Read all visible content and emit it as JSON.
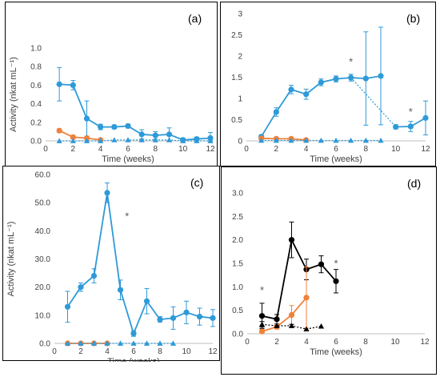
{
  "chart_data": [
    {
      "type": "line",
      "panel_label": "(a)",
      "xlabel": "Time (weeks)",
      "ylabel": "Activity (nkat mL⁻¹)",
      "xlim": [
        0,
        12
      ],
      "ylim": [
        0,
        1.0
      ],
      "xticks": [
        "0",
        "2",
        "4",
        "6",
        "8",
        "10",
        "12"
      ],
      "yticks": [
        "0.0",
        "0.2",
        "0.4",
        "0.6",
        "0.8",
        "1.0"
      ],
      "grid": false,
      "series": [
        {
          "color": "#2e9ad8",
          "style": "solid",
          "marker": "circle",
          "x": [
            1,
            2,
            3,
            4,
            5,
            6,
            7,
            8,
            9,
            10,
            11,
            12
          ],
          "values": [
            0.61,
            0.6,
            0.24,
            0.15,
            0.15,
            0.16,
            0.07,
            0.06,
            0.07,
            0.01,
            0.02,
            0.03
          ],
          "err": [
            0.18,
            0.05,
            0.19,
            0.03,
            0.02,
            0.02,
            0.05,
            0.04,
            0.07,
            0.02,
            0.02,
            0.06
          ]
        },
        {
          "color": "#f0813a",
          "style": "solid",
          "marker": "circle",
          "x": [
            1,
            2,
            3,
            4
          ],
          "values": [
            0.11,
            0.04,
            0.03,
            0.01
          ],
          "err": [
            0.02,
            0.02,
            0.01,
            0.0
          ]
        },
        {
          "color": "#2e9ad8",
          "style": "dotted",
          "marker": "triangle",
          "x": [
            1,
            2,
            3,
            4,
            5,
            6,
            7,
            8,
            9,
            10,
            11,
            12
          ],
          "values": [
            0.0,
            0.0,
            0.0,
            0.0,
            0.01,
            0.01,
            0.01,
            0.01,
            0.01,
            0.0,
            0.0,
            0.0
          ],
          "err": []
        }
      ],
      "annotations": []
    },
    {
      "type": "line",
      "panel_label": "(b)",
      "xlabel": "Time (weeks)",
      "ylabel": "",
      "xlim": [
        0,
        12
      ],
      "ylim": [
        0,
        3.0
      ],
      "xticks": [
        "0",
        "2",
        "4",
        "6",
        "8",
        "10",
        "12"
      ],
      "yticks": [
        "0",
        "0.5",
        "1",
        "1.5",
        "2",
        "2.5",
        "3"
      ],
      "grid": false,
      "series": [
        {
          "color": "#2e9ad8",
          "style": "solid",
          "marker": "circle",
          "x": [
            1,
            2,
            3,
            4,
            5,
            6,
            7,
            8,
            9
          ],
          "values": [
            0.1,
            0.68,
            1.21,
            1.1,
            1.38,
            1.46,
            1.49,
            1.47,
            1.53
          ],
          "err": [
            0.03,
            0.1,
            0.1,
            0.12,
            0.08,
            0.07,
            0.08,
            1.1,
            1.15
          ]
        },
        {
          "color": "#2e9ad8",
          "style": "dotted",
          "marker": "none",
          "x": [
            7,
            10
          ],
          "values": [
            1.49,
            0.33
          ],
          "err": []
        },
        {
          "color": "#2e9ad8",
          "style": "solid",
          "marker": "circle",
          "x": [
            10,
            11,
            12
          ],
          "values": [
            0.33,
            0.34,
            0.54
          ],
          "err": [
            0.05,
            0.12,
            0.4
          ]
        },
        {
          "color": "#f0813a",
          "style": "solid",
          "marker": "circle",
          "x": [
            1,
            2,
            3,
            4
          ],
          "values": [
            0.06,
            0.05,
            0.05,
            0.02
          ],
          "err": [
            0.02,
            0.02,
            0.02,
            0.01
          ]
        },
        {
          "color": "#2e9ad8",
          "style": "dotted",
          "marker": "triangle",
          "x": [
            1,
            2,
            3,
            4,
            5,
            6,
            7,
            8,
            9
          ],
          "values": [
            0.01,
            0.01,
            0.01,
            0.01,
            0.01,
            0.01,
            0.01,
            0.01,
            0.01
          ],
          "err": []
        }
      ],
      "annotations": [
        {
          "text": "*",
          "x": 7,
          "y": 1.78
        },
        {
          "text": "*",
          "x": 11,
          "y": 0.6
        }
      ]
    },
    {
      "type": "line",
      "panel_label": "(c)",
      "xlabel": "Time (weeks)",
      "ylabel": "Activity (nkat mL⁻¹)",
      "xlim": [
        0,
        12
      ],
      "ylim": [
        0,
        60
      ],
      "xticks": [
        "0",
        "2",
        "4",
        "6",
        "8",
        "10",
        "12"
      ],
      "yticks": [
        "0.0",
        "10.0",
        "20.0",
        "30.0",
        "40.0",
        "50.0",
        "60.0"
      ],
      "grid": false,
      "series": [
        {
          "color": "#2e9ad8",
          "style": "solid",
          "marker": "circle",
          "x": [
            1,
            2,
            3,
            4,
            5,
            6,
            7,
            8,
            9,
            10,
            11,
            12
          ],
          "values": [
            13,
            20,
            24,
            53.5,
            19,
            3.5,
            15,
            8.5,
            9,
            11,
            9.5,
            9
          ],
          "err": [
            5.5,
            1.5,
            2.5,
            3.5,
            3.5,
            1,
            4.5,
            1,
            4,
            4,
            3,
            3
          ]
        },
        {
          "color": "#f0813a",
          "style": "solid",
          "marker": "circle",
          "x": [
            1,
            2,
            3,
            4
          ],
          "values": [
            0,
            0,
            0,
            0
          ],
          "err": []
        },
        {
          "color": "#2e9ad8",
          "style": "dotted",
          "marker": "triangle",
          "x": [
            1,
            2,
            3,
            4,
            5,
            6,
            7,
            8,
            9
          ],
          "values": [
            0,
            0,
            0,
            0,
            0,
            0,
            0,
            0,
            0
          ],
          "err": []
        }
      ],
      "annotations": [
        {
          "text": "*",
          "x": 5.5,
          "y": 44
        }
      ]
    },
    {
      "type": "line",
      "panel_label": "(d)",
      "xlabel": "Time (weeks)",
      "ylabel": "",
      "xlim": [
        0,
        12
      ],
      "ylim": [
        0,
        3.0
      ],
      "xticks": [
        "0",
        "2",
        "4",
        "6",
        "8",
        "10",
        "12"
      ],
      "yticks": [
        "0.0",
        "0.5",
        "1.0",
        "1.5",
        "2.0",
        "2.5",
        "3.0"
      ],
      "grid": false,
      "series": [
        {
          "color": "#000000",
          "style": "solid",
          "marker": "circle",
          "x": [
            1,
            2,
            3,
            4,
            5,
            6
          ],
          "values": [
            0.38,
            0.31,
            2.0,
            1.37,
            1.48,
            1.12
          ],
          "err": [
            0.27,
            0.1,
            0.38,
            0.22,
            0.18,
            0.25
          ]
        },
        {
          "color": "#f0813a",
          "style": "solid",
          "marker": "circle",
          "x": [
            1,
            2,
            3,
            4
          ],
          "values": [
            0.05,
            0.15,
            0.4,
            0.77
          ],
          "err": [
            0.04,
            0.05,
            0.2,
            0.65
          ]
        },
        {
          "color": "#000000",
          "style": "dotted",
          "marker": "triangle",
          "x": [
            1,
            2,
            3,
            4,
            5
          ],
          "values": [
            0.2,
            0.17,
            0.17,
            0.1,
            0.16
          ],
          "err": [
            0.06,
            0,
            0.03,
            0,
            0
          ]
        }
      ],
      "annotations": [
        {
          "text": "*",
          "x": 1,
          "y": 0.85
        },
        {
          "text": "*",
          "x": 6,
          "y": 1.42
        }
      ]
    }
  ]
}
